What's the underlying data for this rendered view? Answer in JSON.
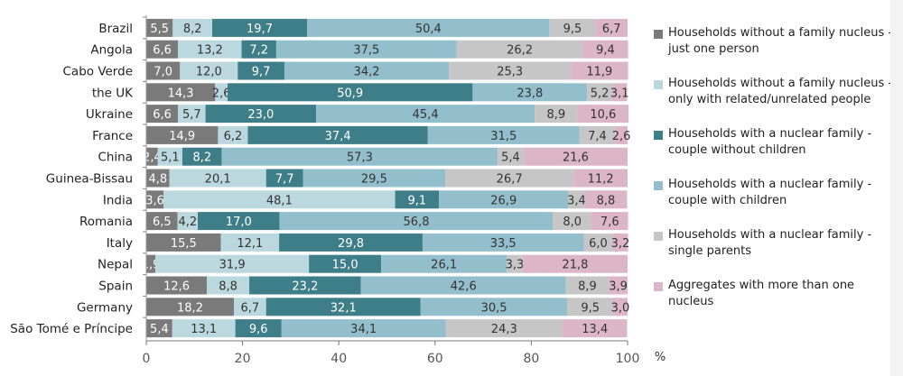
{
  "chart_data": {
    "type": "bar",
    "orientation": "horizontal",
    "stacked": true,
    "title": "",
    "xlabel": "%",
    "ylabel": "",
    "xlim": [
      0,
      100
    ],
    "xticks": [
      0,
      20,
      40,
      60,
      80,
      100
    ],
    "grid": false,
    "legend_position": "right",
    "categories": [
      "Brazil",
      "Angola",
      "Cabo Verde",
      "the UK",
      "Ukraine",
      "France",
      "China",
      "Guinea-Bissau",
      "India",
      "Romania",
      "Italy",
      "Nepal",
      "Spain",
      "Germany",
      "São Tomé e Príncipe"
    ],
    "series": [
      {
        "name": "Households without a family nucleus - just one person",
        "color": "#7a7a7a",
        "label_color": "#ffffff",
        "values": [
          5.5,
          6.6,
          7.0,
          14.3,
          6.6,
          14.9,
          2.4,
          4.8,
          3.6,
          6.5,
          15.5,
          1.9,
          12.6,
          18.2,
          5.4
        ],
        "labels": [
          "5,5",
          "6,6",
          "7,0",
          "14,3",
          "6,6",
          "14,9",
          "2,4",
          "4,8",
          "3,6",
          "6,5",
          "15,5",
          "1,9",
          "12,6",
          "18,2",
          "5,4"
        ]
      },
      {
        "name": "Households without a family nucleus - only with related/unrelated people",
        "color": "#bcd8df",
        "label_color": "#333333",
        "values": [
          8.2,
          13.2,
          12.0,
          2.6,
          5.7,
          6.2,
          5.1,
          20.1,
          48.1,
          4.2,
          12.1,
          31.9,
          8.8,
          6.7,
          13.1
        ],
        "labels": [
          "8,2",
          "13,2",
          "12,0",
          "2,6",
          "5,7",
          "6,2",
          "5,1",
          "20,1",
          "48,1",
          "4,2",
          "12,1",
          "31,9",
          "8,8",
          "6,7",
          "13,1"
        ]
      },
      {
        "name": "Households with a nuclear family - couple without children",
        "color": "#3e7e88",
        "label_color": "#ffffff",
        "values": [
          19.7,
          7.2,
          9.7,
          50.9,
          23.0,
          37.4,
          8.2,
          7.7,
          9.1,
          17.0,
          29.8,
          15.0,
          23.2,
          32.1,
          9.6
        ],
        "labels": [
          "19,7",
          "7,2",
          "9,7",
          "50,9",
          "23,0",
          "37,4",
          "8,2",
          "7,7",
          "9,1",
          "17,0",
          "29,8",
          "15,0",
          "23,2",
          "32,1",
          "9,6"
        ]
      },
      {
        "name": "Households with a nuclear family - couple with children",
        "color": "#93bfcd",
        "label_color": "#333333",
        "values": [
          50.4,
          37.5,
          34.2,
          23.8,
          45.4,
          31.5,
          57.3,
          29.5,
          26.9,
          56.8,
          33.5,
          26.1,
          42.6,
          30.5,
          34.1
        ],
        "labels": [
          "50,4",
          "37,5",
          "34,2",
          "23,8",
          "45,4",
          "31,5",
          "57,3",
          "29,5",
          "26,9",
          "56,8",
          "33,5",
          "26,1",
          "42,6",
          "30,5",
          "34,1"
        ]
      },
      {
        "name": "Households with a nuclear family - single parents",
        "color": "#c6c6c6",
        "label_color": "#333333",
        "values": [
          9.5,
          26.2,
          25.3,
          5.2,
          8.9,
          7.4,
          5.4,
          26.7,
          3.4,
          8.0,
          6.0,
          3.3,
          8.9,
          9.5,
          24.3
        ],
        "labels": [
          "9,5",
          "26,2",
          "25,3",
          "5,2",
          "8,9",
          "7,4",
          "5,4",
          "26,7",
          "3,4",
          "8,0",
          "6,0",
          "3,3",
          "8,9",
          "9,5",
          "24,3"
        ]
      },
      {
        "name": "Aggregates with more than one nucleus",
        "color": "#dcb6c6",
        "label_color": "#333333",
        "values": [
          6.7,
          9.4,
          11.9,
          3.1,
          10.6,
          2.6,
          21.6,
          11.2,
          8.8,
          7.6,
          3.2,
          21.8,
          3.9,
          3.0,
          13.4
        ],
        "labels": [
          "6,7",
          "9,4",
          "11,9",
          "3,1",
          "10,6",
          "2,6",
          "21,6",
          "11,2",
          "8,8",
          "7,6",
          "3,2",
          "21,8",
          "3,9",
          "3,0",
          "13,4"
        ]
      }
    ]
  },
  "legend": {
    "items": [
      {
        "label": "Households without a family nucleus - just one person",
        "color": "#7a7a7a"
      },
      {
        "label": "Households without a family nucleus - only with related/unrelated people",
        "color": "#bcd8df"
      },
      {
        "label": "Households with a nuclear family - couple without children",
        "color": "#3e7e88"
      },
      {
        "label": "Households with a nuclear family - couple with children",
        "color": "#93bfcd"
      },
      {
        "label": "Households with a nuclear family - single parents",
        "color": "#c6c6c6"
      },
      {
        "label": "Aggregates with more than one nucleus",
        "color": "#dcb6c6"
      }
    ]
  }
}
